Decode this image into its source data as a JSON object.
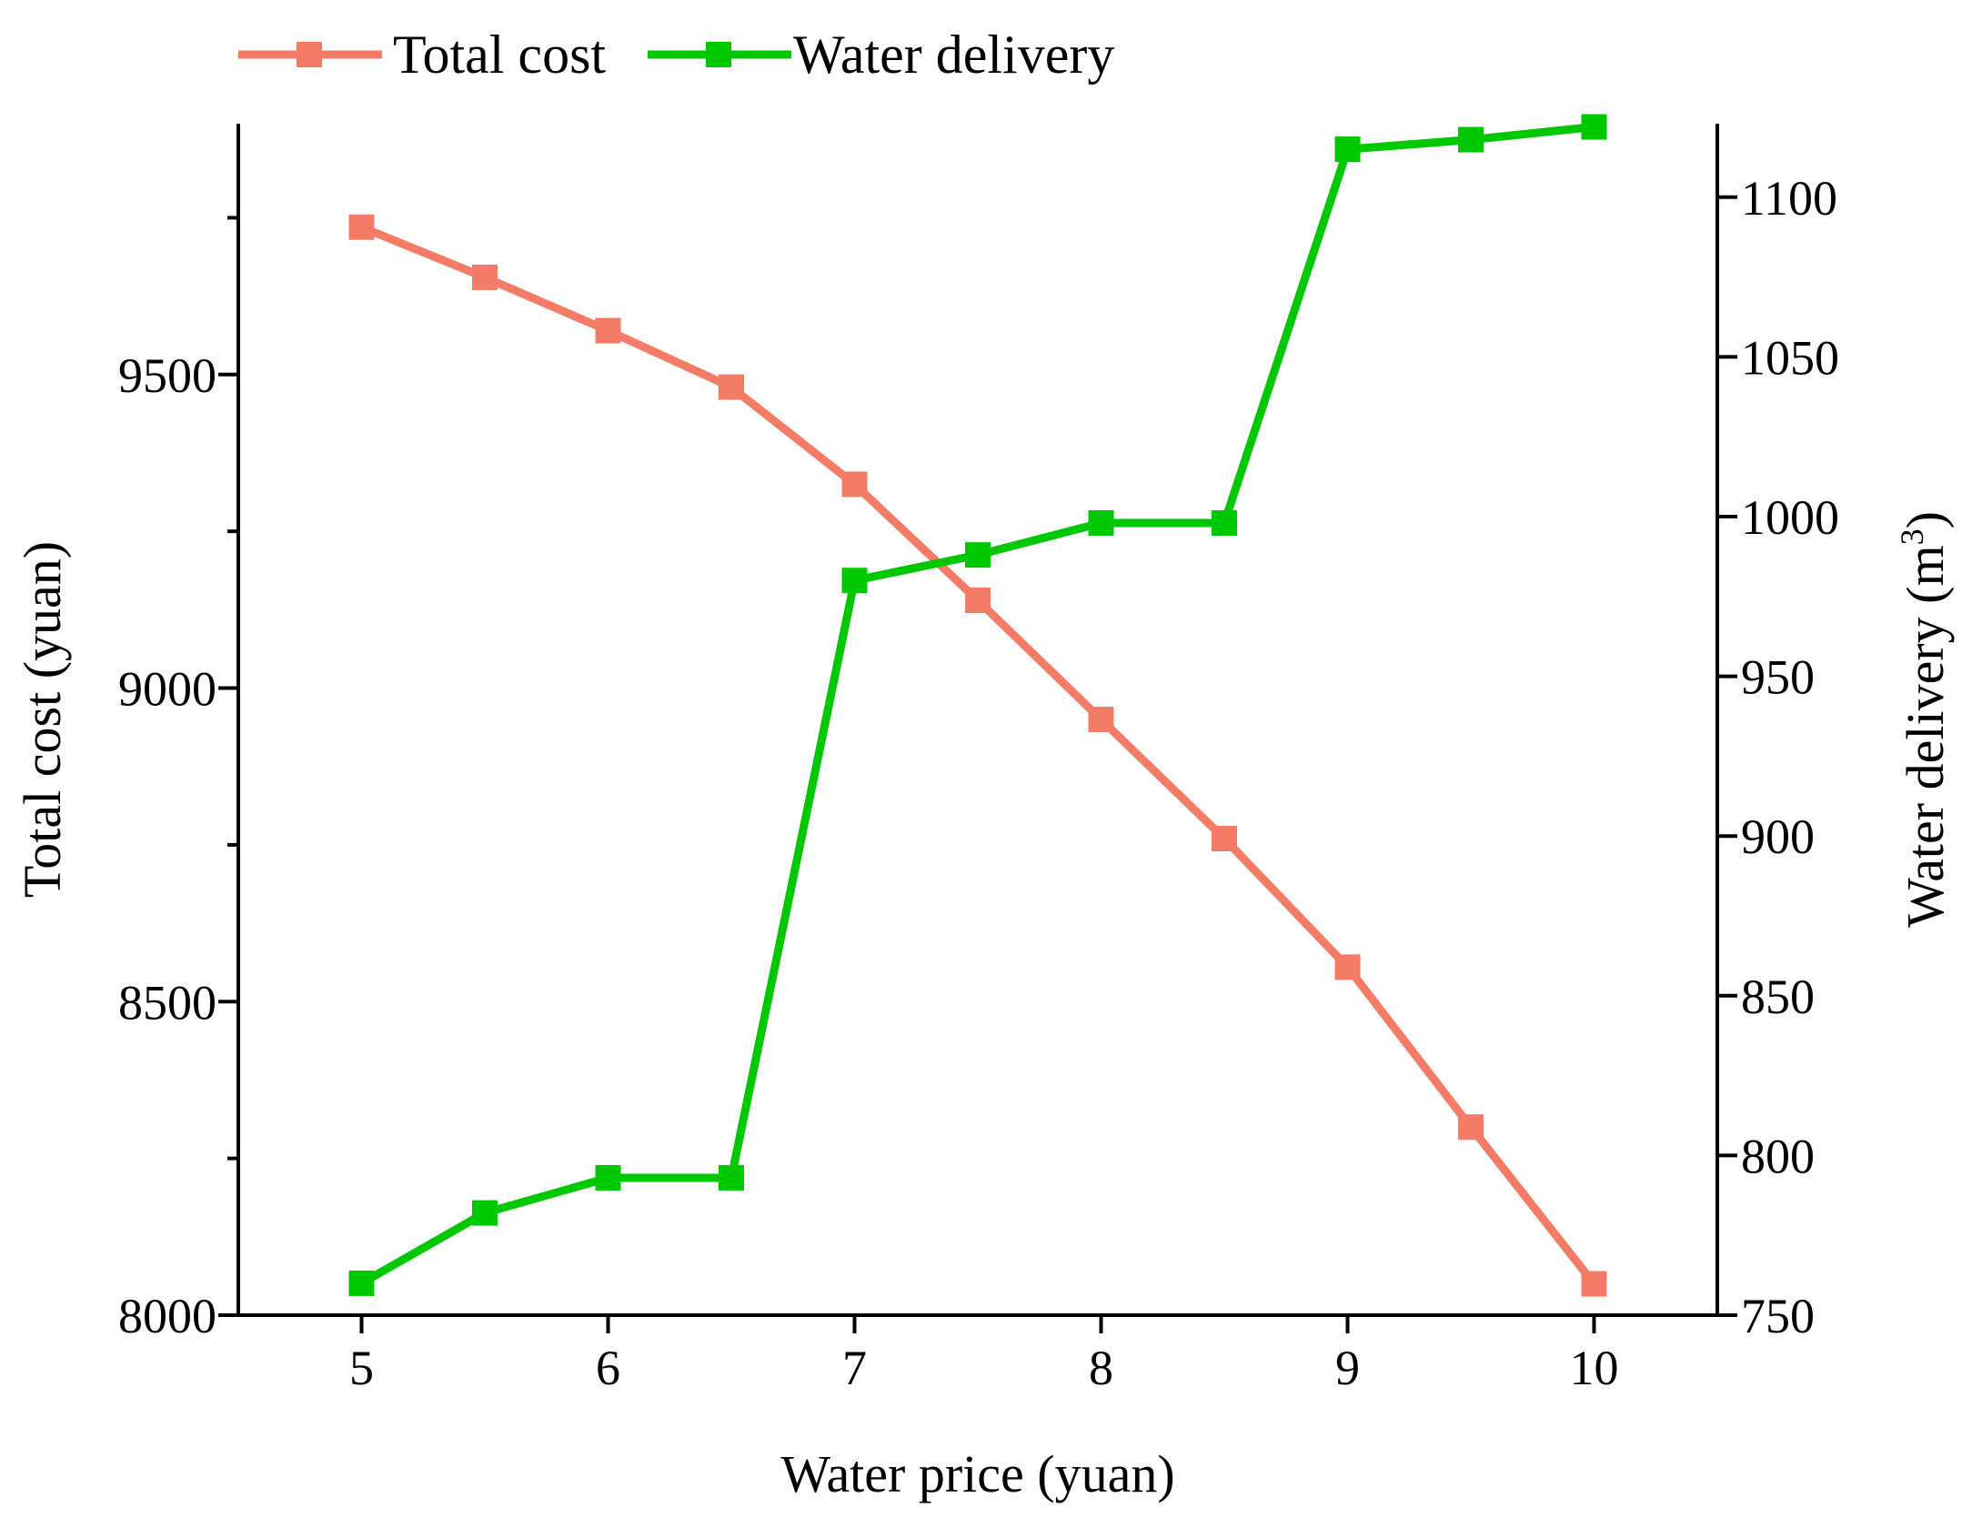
{
  "chart_data": {
    "type": "line",
    "title": "",
    "xlabel": "Water price (yuan)",
    "ylabel_left": "Total cost (yuan)",
    "ylabel_right_prefix": "Water delivery (m",
    "ylabel_right_sup": "3",
    "ylabel_right_suffix": ")",
    "x": [
      5,
      5.5,
      6,
      6.5,
      7,
      7.5,
      8,
      8.5,
      9,
      9.5,
      10
    ],
    "xlim": [
      4.5,
      10.5
    ],
    "xticks": [
      5,
      6,
      7,
      8,
      9,
      10
    ],
    "xtick_labels": [
      "5",
      "6",
      "7",
      "8",
      "9",
      "10"
    ],
    "ylim_left": [
      8000,
      9900
    ],
    "yticks_left": [
      8000,
      8500,
      9000,
      9500
    ],
    "ytick_labels_left": [
      "8000",
      "8500",
      "9000",
      "9500"
    ],
    "yminor_left": [
      8250,
      8750,
      9250,
      9750
    ],
    "ylim_right": [
      750,
      1123
    ],
    "yticks_right": [
      750,
      800,
      850,
      900,
      950,
      1000,
      1050,
      1100
    ],
    "ytick_labels_right": [
      "750",
      "800",
      "850",
      "900",
      "950",
      "1000",
      "1050",
      "1100"
    ],
    "legend_position": "top",
    "series": [
      {
        "name": "Total cost",
        "axis": "left",
        "color": "#f47c66",
        "values": [
          9735,
          9655,
          9570,
          9480,
          9325,
          9140,
          8950,
          8760,
          8555,
          8300,
          8050
        ]
      },
      {
        "name": "Water delivery",
        "axis": "right",
        "color": "#00c800",
        "values": [
          760,
          782,
          793,
          793,
          980,
          988,
          998,
          998,
          1115,
          1118,
          1122
        ]
      }
    ]
  }
}
